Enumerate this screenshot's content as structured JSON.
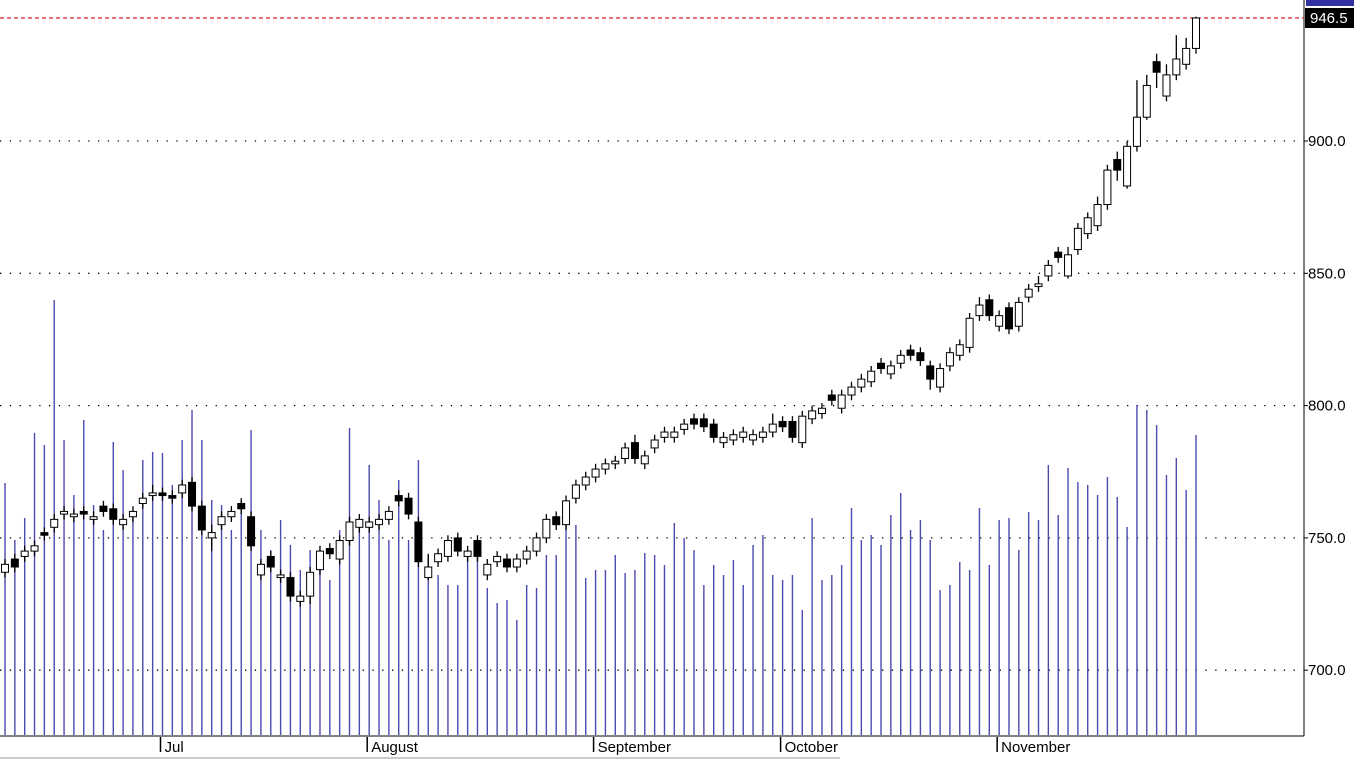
{
  "chart_data": {
    "type": "candlestick",
    "categories": [
      null,
      null,
      null,
      null,
      null,
      null,
      null,
      null,
      null,
      null,
      null,
      null,
      null,
      null,
      null,
      null,
      "Jul",
      null,
      null,
      null,
      null,
      null,
      null,
      null,
      null,
      null,
      null,
      null,
      null,
      null,
      null,
      null,
      null,
      null,
      null,
      null,
      null,
      "August",
      null,
      null,
      null,
      null,
      null,
      null,
      null,
      null,
      null,
      null,
      null,
      null,
      null,
      null,
      null,
      null,
      null,
      null,
      null,
      null,
      null,
      null,
      "September",
      null,
      null,
      null,
      null,
      null,
      null,
      null,
      null,
      null,
      null,
      null,
      null,
      null,
      null,
      null,
      null,
      null,
      null,
      "October",
      null,
      null,
      null,
      null,
      null,
      null,
      null,
      null,
      null,
      null,
      null,
      null,
      null,
      null,
      null,
      null,
      null,
      null,
      null,
      null,
      null,
      "November",
      null,
      null,
      null,
      null,
      null,
      null,
      null,
      null,
      null,
      null,
      null,
      null,
      null,
      null,
      null,
      null,
      null,
      null,
      null,
      null
    ],
    "open": [
      737,
      742,
      743,
      745,
      752,
      754,
      759,
      758,
      760,
      757,
      762,
      761,
      755,
      758,
      763,
      766,
      767,
      766,
      767,
      771,
      762,
      750,
      755,
      758,
      763,
      758,
      736,
      743,
      735,
      735,
      726,
      728,
      738,
      746,
      742,
      749,
      754,
      754,
      755,
      757,
      766,
      765,
      756,
      735,
      741,
      743,
      750,
      743,
      749,
      736,
      741,
      742,
      739,
      742,
      745,
      750,
      758,
      755,
      765,
      770,
      773,
      776,
      778,
      780,
      786,
      778,
      784,
      788,
      788,
      791,
      795,
      795,
      793,
      786,
      787,
      788,
      787,
      788,
      790,
      794,
      794,
      786,
      795,
      797,
      804,
      799,
      804,
      807,
      809,
      816,
      812,
      816,
      821,
      820,
      815,
      807,
      815,
      819,
      822,
      834,
      840,
      830,
      837,
      830,
      841,
      845,
      849,
      858,
      849,
      859,
      865,
      868,
      876,
      893,
      883,
      898,
      909,
      930,
      917,
      925,
      929,
      935
    ],
    "high": [
      742,
      744,
      747,
      749,
      754,
      759,
      762,
      761,
      762,
      760,
      764,
      763,
      759,
      762,
      767,
      770,
      769,
      768,
      772,
      773,
      764,
      755,
      760,
      762,
      765,
      760,
      742,
      745,
      738,
      737,
      730,
      739,
      747,
      748,
      751,
      758,
      759,
      758,
      759,
      762,
      768,
      767,
      758,
      744,
      746,
      751,
      752,
      747,
      751,
      742,
      745,
      744,
      744,
      747,
      752,
      759,
      760,
      766,
      772,
      775,
      778,
      780,
      781,
      786,
      789,
      783,
      789,
      792,
      792,
      795,
      797,
      797,
      795,
      790,
      791,
      792,
      791,
      792,
      797,
      796,
      796,
      798,
      800,
      801,
      806,
      806,
      809,
      812,
      815,
      818,
      817,
      821,
      823,
      822,
      817,
      816,
      822,
      825,
      835,
      841,
      842,
      836,
      839,
      841,
      846,
      849,
      855,
      860,
      860,
      869,
      873,
      879,
      891,
      896,
      900,
      923,
      925,
      933,
      929,
      940,
      939,
      947
    ],
    "low": [
      735,
      737,
      741,
      743,
      749,
      752,
      757,
      756,
      757,
      755,
      758,
      755,
      753,
      756,
      761,
      764,
      764,
      763,
      765,
      760,
      751,
      745,
      753,
      756,
      759,
      745,
      734,
      737,
      733,
      726,
      724,
      725,
      736,
      742,
      740,
      747,
      752,
      752,
      753,
      755,
      762,
      757,
      739,
      734,
      739,
      741,
      743,
      741,
      741,
      734,
      739,
      737,
      737,
      740,
      743,
      748,
      753,
      753,
      763,
      768,
      771,
      774,
      776,
      778,
      778,
      776,
      782,
      786,
      786,
      789,
      791,
      790,
      786,
      784,
      785,
      786,
      785,
      786,
      788,
      790,
      786,
      784,
      793,
      795,
      800,
      797,
      802,
      805,
      807,
      812,
      810,
      814,
      817,
      815,
      806,
      805,
      813,
      817,
      820,
      832,
      832,
      828,
      827,
      828,
      839,
      843,
      847,
      854,
      848,
      857,
      863,
      866,
      874,
      885,
      882,
      896,
      908,
      920,
      915,
      923,
      927,
      933
    ],
    "close": [
      740,
      739,
      745,
      747,
      751,
      757,
      760,
      759,
      759,
      758,
      760,
      757,
      757,
      760,
      765,
      767,
      766,
      765,
      770,
      762,
      753,
      752,
      758,
      760,
      761,
      747,
      740,
      739,
      736,
      728,
      728,
      737,
      745,
      744,
      749,
      756,
      757,
      756,
      757,
      760,
      764,
      759,
      741,
      739,
      744,
      749,
      745,
      745,
      743,
      740,
      743,
      739,
      742,
      745,
      750,
      757,
      755,
      764,
      770,
      773,
      776,
      778,
      779,
      784,
      780,
      781,
      787,
      790,
      790,
      793,
      793,
      792,
      788,
      788,
      789,
      790,
      789,
      790,
      793,
      792,
      788,
      796,
      798,
      799,
      802,
      804,
      807,
      810,
      813,
      814,
      815,
      819,
      819,
      817,
      810,
      814,
      820,
      823,
      833,
      838,
      834,
      834,
      829,
      839,
      844,
      846,
      853,
      856,
      857,
      867,
      871,
      876,
      889,
      889,
      898,
      909,
      921,
      926,
      925,
      931,
      935,
      946.5
    ],
    "volume": [
      252,
      195,
      217,
      302,
      290,
      435,
      295,
      240,
      315,
      230,
      205,
      293,
      265,
      225,
      275,
      283,
      282,
      250,
      295,
      325,
      295,
      235,
      230,
      205,
      235,
      305,
      205,
      185,
      215,
      190,
      165,
      185,
      185,
      155,
      205,
      307,
      215,
      270,
      235,
      195,
      255,
      195,
      275,
      180,
      160,
      150,
      150,
      185,
      180,
      147,
      132,
      135,
      115,
      150,
      147,
      180,
      180,
      235,
      210,
      157,
      165,
      165,
      180,
      162,
      165,
      182,
      180,
      170,
      212,
      197,
      185,
      150,
      170,
      160,
      175,
      150,
      190,
      200,
      160,
      155,
      160,
      125,
      217,
      155,
      160,
      170,
      227,
      195,
      200,
      190,
      220,
      242,
      205,
      215,
      195,
      145,
      150,
      173,
      165,
      227,
      170,
      215,
      217,
      185,
      223,
      215,
      270,
      220,
      267,
      253,
      250,
      240,
      258,
      238,
      208,
      330,
      325,
      310,
      260,
      277,
      245,
      300
    ],
    "ylim": [
      675.5,
      953.3
    ],
    "yticks": [
      {
        "value": 700,
        "label": "700.0"
      },
      {
        "value": 750,
        "label": "750.0"
      },
      {
        "value": 800,
        "label": "800.0"
      },
      {
        "value": 850,
        "label": "850.0"
      },
      {
        "value": 900,
        "label": "900.0"
      }
    ],
    "grid": true,
    "up_color": "#ffffff",
    "down_color": "#000000",
    "volume_color": "#4a4ab0",
    "last_price_color": "#e02020"
  }
}
